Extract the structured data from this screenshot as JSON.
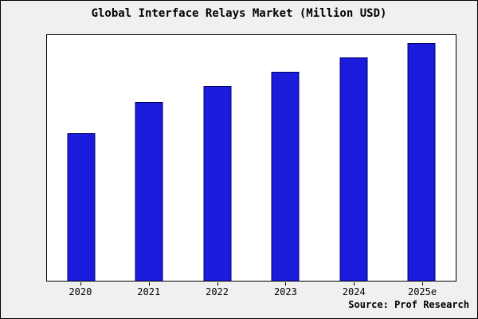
{
  "title": "Global Interface Relays Market (Million USD)",
  "source": "Source: Prof Research",
  "colors": {
    "background": "#f0f0f0",
    "plot_background": "#ffffff",
    "bar_fill": "#1b1bdb",
    "bar_edge": "#000066",
    "frame_border": "#000000"
  },
  "chart_data": {
    "type": "bar",
    "title": "Global Interface Relays Market (Million USD)",
    "categories": [
      "2020",
      "2021",
      "2022",
      "2023",
      "2024",
      "2025e"
    ],
    "values": [
      62,
      75,
      82,
      88,
      94,
      100
    ],
    "xlabel": "",
    "ylabel": "",
    "ylim": [
      0,
      104
    ],
    "grid": false,
    "legend_position": "none",
    "y_tick_labels_visible": false,
    "bar_color": "#1b1bdb"
  }
}
